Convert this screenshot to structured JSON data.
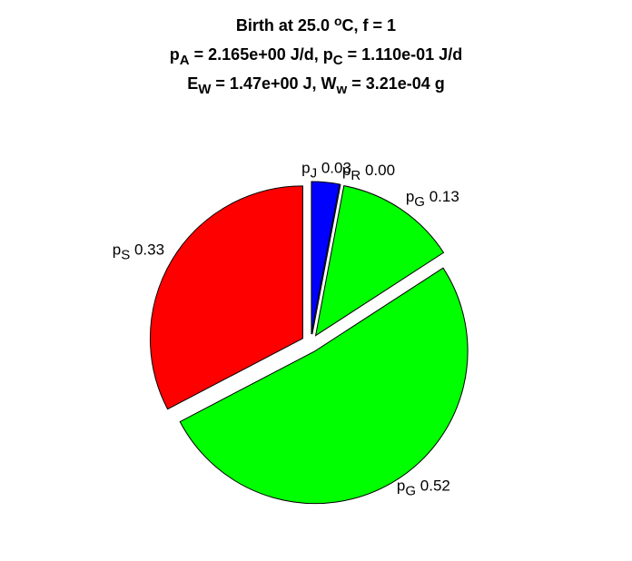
{
  "chart_data": {
    "type": "pie",
    "title": [
      [
        {
          "text": "Birth at 25.0 "
        },
        {
          "text": "o",
          "shift": "super"
        },
        {
          "text": "C, f = 1"
        }
      ],
      [
        {
          "text": "p"
        },
        {
          "text": "A",
          "shift": "sub"
        },
        {
          "text": " = 2.165e+00 J/d, p"
        },
        {
          "text": "C",
          "shift": "sub"
        },
        {
          "text": " = 1.110e-01 J/d"
        }
      ],
      [
        {
          "text": "E"
        },
        {
          "text": "W",
          "shift": "sub"
        },
        {
          "text": " = 1.47e+00 J, W"
        },
        {
          "text": "w",
          "shift": "sub"
        },
        {
          "text": " = 3.21e-04 g"
        }
      ]
    ],
    "categories": [
      {
        "base": "p",
        "sub": "J"
      },
      {
        "base": "p",
        "sub": "R"
      },
      {
        "base": "p",
        "sub": "G"
      },
      {
        "base": "p",
        "sub": "G"
      },
      {
        "base": "p",
        "sub": "S"
      }
    ],
    "values": [
      0.03,
      0.0,
      0.13,
      0.52,
      0.33
    ],
    "value_labels": [
      "0.03",
      "0.00",
      "0.13",
      "0.52",
      "0.33"
    ],
    "colors": [
      "#0000ff",
      "#ffffff",
      "#00ff00",
      "#00ff00",
      "#ff0000"
    ],
    "explode": true
  }
}
